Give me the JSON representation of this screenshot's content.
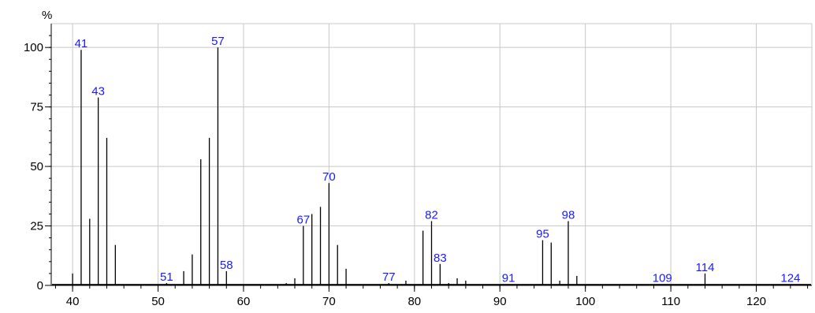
{
  "chart_data": {
    "type": "bar",
    "ylabel": "%",
    "xlim": [
      37.5,
      126.5
    ],
    "ylim": [
      0,
      110
    ],
    "grid": true,
    "x_ticks": [
      40,
      50,
      60,
      70,
      80,
      90,
      100,
      110,
      120
    ],
    "y_ticks": [
      0,
      25,
      50,
      75,
      100
    ],
    "peaks": [
      {
        "mz": 40,
        "abundance": 5
      },
      {
        "mz": 41,
        "abundance": 99,
        "label": "41"
      },
      {
        "mz": 42,
        "abundance": 28
      },
      {
        "mz": 43,
        "abundance": 79,
        "label": "43"
      },
      {
        "mz": 44,
        "abundance": 62
      },
      {
        "mz": 45,
        "abundance": 17
      },
      {
        "mz": 46,
        "abundance": 0.5
      },
      {
        "mz": 50,
        "abundance": 0.5
      },
      {
        "mz": 51,
        "abundance": 1,
        "label": "51"
      },
      {
        "mz": 52,
        "abundance": 0.5
      },
      {
        "mz": 53,
        "abundance": 6
      },
      {
        "mz": 54,
        "abundance": 13
      },
      {
        "mz": 55,
        "abundance": 53
      },
      {
        "mz": 56,
        "abundance": 62
      },
      {
        "mz": 57,
        "abundance": 100,
        "label": "57"
      },
      {
        "mz": 58,
        "abundance": 6,
        "label": "58"
      },
      {
        "mz": 59,
        "abundance": 0.5
      },
      {
        "mz": 65,
        "abundance": 1
      },
      {
        "mz": 66,
        "abundance": 3
      },
      {
        "mz": 67,
        "abundance": 25,
        "label": "67"
      },
      {
        "mz": 68,
        "abundance": 30
      },
      {
        "mz": 69,
        "abundance": 33
      },
      {
        "mz": 70,
        "abundance": 43,
        "label": "70"
      },
      {
        "mz": 71,
        "abundance": 17
      },
      {
        "mz": 72,
        "abundance": 7
      },
      {
        "mz": 73,
        "abundance": 0.5
      },
      {
        "mz": 77,
        "abundance": 1,
        "label": "77"
      },
      {
        "mz": 79,
        "abundance": 2
      },
      {
        "mz": 80,
        "abundance": 0.5
      },
      {
        "mz": 81,
        "abundance": 23
      },
      {
        "mz": 82,
        "abundance": 27,
        "label": "82"
      },
      {
        "mz": 83,
        "abundance": 9,
        "label": "83"
      },
      {
        "mz": 84,
        "abundance": 1
      },
      {
        "mz": 85,
        "abundance": 3
      },
      {
        "mz": 86,
        "abundance": 2
      },
      {
        "mz": 91,
        "abundance": 0.5,
        "label": "91"
      },
      {
        "mz": 93,
        "abundance": 0.5
      },
      {
        "mz": 94,
        "abundance": 0.5
      },
      {
        "mz": 95,
        "abundance": 19,
        "label": "95"
      },
      {
        "mz": 96,
        "abundance": 18
      },
      {
        "mz": 97,
        "abundance": 2
      },
      {
        "mz": 98,
        "abundance": 27,
        "label": "98"
      },
      {
        "mz": 99,
        "abundance": 4
      },
      {
        "mz": 109,
        "abundance": 0.5,
        "label": "109"
      },
      {
        "mz": 110,
        "abundance": 0.5
      },
      {
        "mz": 113,
        "abundance": 0.5
      },
      {
        "mz": 114,
        "abundance": 5,
        "label": "114"
      },
      {
        "mz": 115,
        "abundance": 0.5
      },
      {
        "mz": 124,
        "abundance": 0.5,
        "label": "124"
      }
    ]
  },
  "colors": {
    "bar": "#000000",
    "label": "#1a1aff",
    "grid": "#c8c8c8",
    "axis": "#000000",
    "background": "#ffffff"
  }
}
